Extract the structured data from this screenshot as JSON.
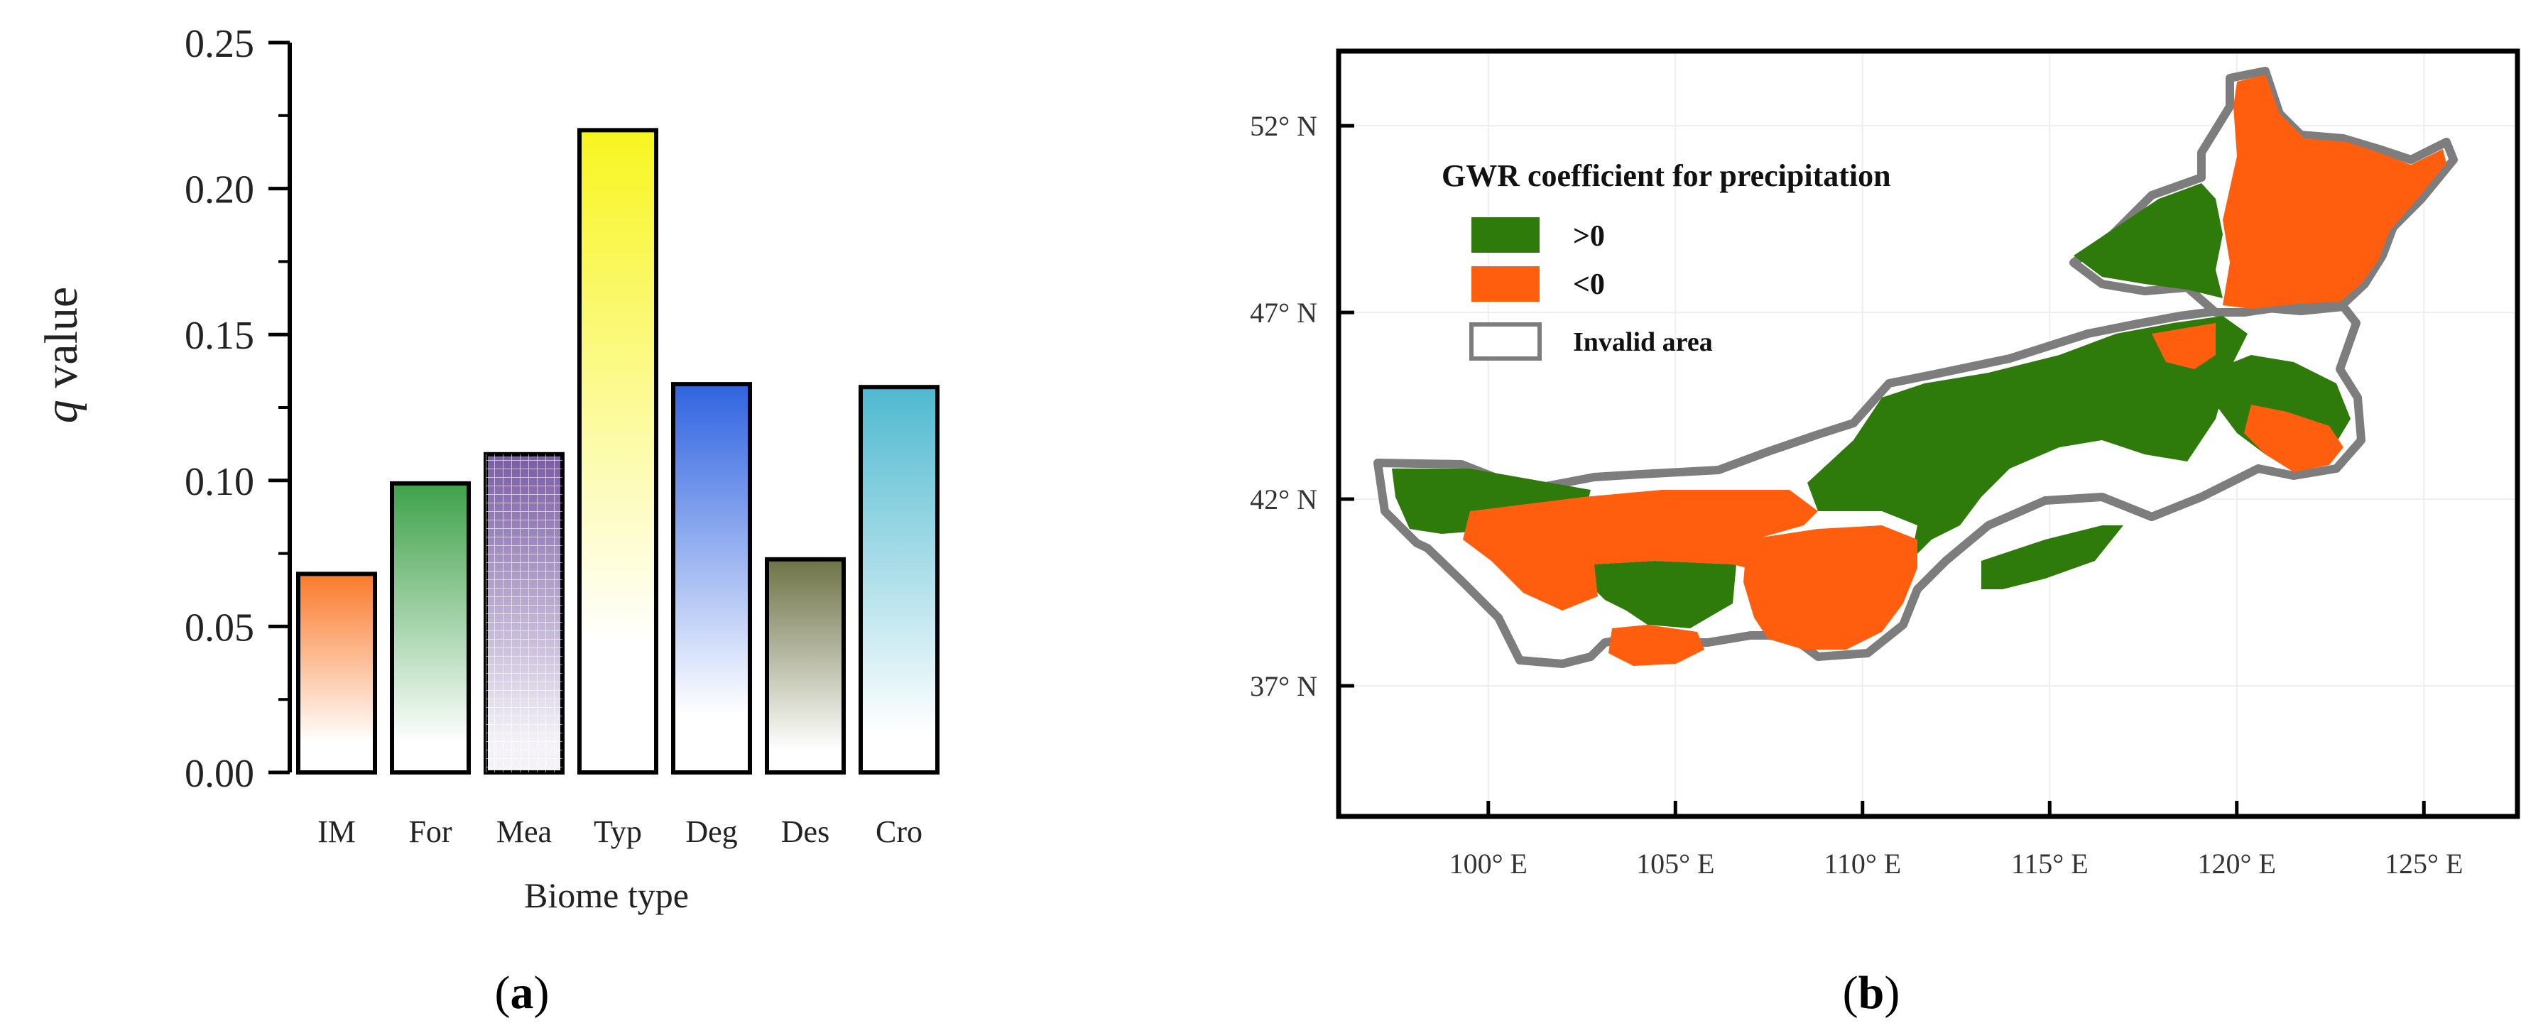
{
  "chart_data": [
    {
      "type": "bar",
      "panel_label": "(a)",
      "panel_letter": "a",
      "xlabel": "Biome type",
      "ylabel_italic": "q",
      "ylabel_rest": " value",
      "ylim": [
        0,
        0.25
      ],
      "yticks": [
        0.0,
        0.05,
        0.1,
        0.15,
        0.2,
        0.25
      ],
      "ytick_labels": [
        "0.00",
        "0.05",
        "0.10",
        "0.15",
        "0.20",
        "0.25"
      ],
      "categories": [
        "IM",
        "For",
        "Mea",
        "Typ",
        "Deg",
        "Des",
        "Cro"
      ],
      "values": [
        0.068,
        0.099,
        0.109,
        0.22,
        0.133,
        0.073,
        0.132
      ],
      "colors": [
        "#f97a2b",
        "#3fa14a",
        "#7a5aa6",
        "#f8f520",
        "#2f63e0",
        "#6e7347",
        "#4fb9cf"
      ]
    },
    {
      "type": "map",
      "panel_label": "(b)",
      "panel_letter": "b",
      "legend": {
        "title": "GWR coefficient for precipitation",
        "items": [
          {
            "label": ">0",
            "color": "#2e7b0b"
          },
          {
            "label": "<0",
            "color": "#ff5e0e"
          },
          {
            "label": "Invalid area",
            "color": "#ffffff"
          }
        ]
      },
      "lat_labels": [
        "52° N",
        "47° N",
        "42° N",
        "37° N"
      ],
      "lat_values": [
        52,
        47,
        42,
        37
      ],
      "lon_labels": [
        "100° E",
        "105° E",
        "110° E",
        "115° E",
        "120° E",
        "125° E"
      ],
      "lon_values": [
        100,
        105,
        110,
        115,
        120,
        125
      ],
      "lat_range": [
        33.5,
        54
      ],
      "lon_range": [
        96,
        127.5
      ]
    }
  ]
}
